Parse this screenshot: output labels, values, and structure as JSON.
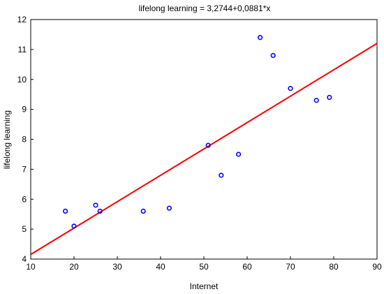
{
  "chart_data": {
    "type": "scatter",
    "title": "lifelong learning = 3,2744+0,0881*x",
    "xlabel": "Internet",
    "ylabel": "lifelong learning",
    "xlim": [
      10,
      90
    ],
    "ylim": [
      4,
      12
    ],
    "xticks": [
      "10",
      "20",
      "30",
      "40",
      "50",
      "60",
      "70",
      "80",
      "90"
    ],
    "yticks": [
      "4",
      "5",
      "6",
      "7",
      "8",
      "9",
      "10",
      "11",
      "12"
    ],
    "grid": false,
    "legend": "none",
    "series": [
      {
        "x": [
          18,
          20,
          25,
          26,
          36,
          42,
          51,
          54,
          58,
          63,
          66,
          70,
          76,
          79
        ],
        "y": [
          5.6,
          5.1,
          5.8,
          5.6,
          5.6,
          5.7,
          7.8,
          6.8,
          7.5,
          11.4,
          10.8,
          9.7,
          9.3,
          9.4
        ],
        "marker": "open-circle",
        "color": "#0000ff"
      }
    ],
    "fit_line": {
      "intercept": 3.2744,
      "slope": 0.0881,
      "color": "#ff0000"
    }
  }
}
